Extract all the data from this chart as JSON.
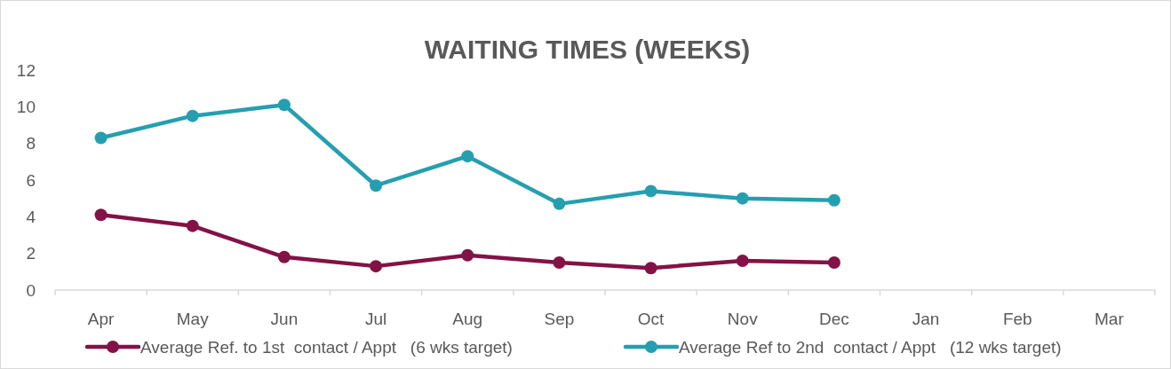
{
  "chart_data": {
    "type": "line",
    "title": "WAITING TIMES (WEEKS)",
    "categories": [
      "Apr",
      "May",
      "Jun",
      "Jul",
      "Aug",
      "Sep",
      "Oct",
      "Nov",
      "Dec",
      "Jan",
      "Feb",
      "Mar"
    ],
    "series": [
      {
        "name": "Average Ref. to 1st  contact / Appt   (6 wks target)",
        "color": "#831246",
        "values": [
          4.1,
          3.5,
          1.8,
          1.3,
          1.9,
          1.5,
          1.2,
          1.6,
          1.5,
          null,
          null,
          null
        ]
      },
      {
        "name": "Average Ref to 2nd  contact / Appt   (12 wks target)",
        "color": "#259fb0",
        "values": [
          8.3,
          9.5,
          10.1,
          5.7,
          7.3,
          4.7,
          5.4,
          5.0,
          4.9,
          null,
          null,
          null
        ]
      }
    ],
    "ylim": [
      0,
      12
    ],
    "yticks": [
      0,
      2,
      4,
      6,
      8,
      10,
      12
    ],
    "grid": false,
    "legend": "bottom",
    "marker": "circle",
    "line_style": "solid"
  }
}
